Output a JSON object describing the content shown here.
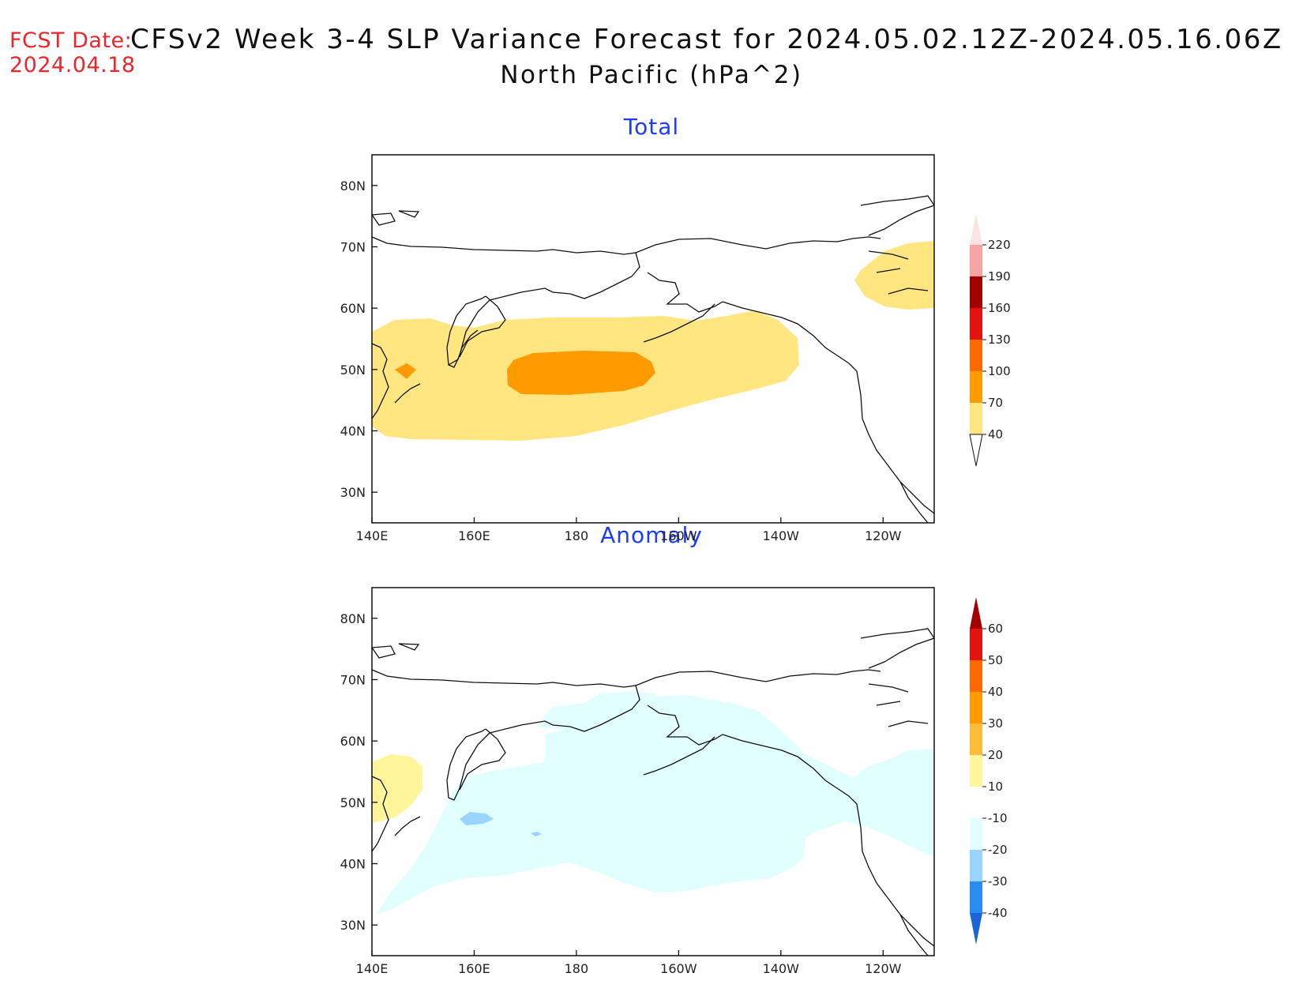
{
  "header": {
    "fcst_label": "FCST Date:",
    "fcst_date": "2024.04.18",
    "title": "CFSv2 Week 3-4 SLP Variance Forecast for 2024.05.02.12Z-2024.05.16.06Z",
    "subtitle": "North Pacific (hPa^2)"
  },
  "axes": {
    "lat_labels": [
      "80N",
      "70N",
      "60N",
      "50N",
      "40N",
      "30N"
    ],
    "lat_values": [
      80,
      70,
      60,
      50,
      40,
      30
    ],
    "lon_labels": [
      "140E",
      "160E",
      "180",
      "160W",
      "140W",
      "120W"
    ],
    "lon_values": [
      140,
      160,
      180,
      200,
      220,
      240
    ],
    "lon_range": [
      140,
      250
    ],
    "lat_range": [
      25,
      85
    ]
  },
  "panels": [
    {
      "title": "Total",
      "colorbar": {
        "labels": [
          "220",
          "190",
          "160",
          "130",
          "100",
          "70",
          "40"
        ],
        "colors": [
          "#f5a3a3",
          "#a30000",
          "#e3140f",
          "#ff6a00",
          "#ff9a00",
          "#ffe680"
        ],
        "top_arrow": "#fde4e4",
        "bottom_arrow": "#ffffff"
      }
    },
    {
      "title": "Anomaly",
      "colorbar": {
        "labels": [
          "60",
          "50",
          "40",
          "30",
          "20",
          "10",
          "-10",
          "-20",
          "-30",
          "-40"
        ],
        "colors": [
          "#e3140f",
          "#ff6a00",
          "#ff9a00",
          "#ffbb3a",
          "#fff59b",
          "#ffffff",
          "#e1ffff",
          "#99d3ff",
          "#2a8cf0"
        ],
        "top_arrow": "#a30000",
        "bottom_arrow": "#1a65d6"
      }
    }
  ],
  "colors": {
    "fcst": "#e8262b",
    "panel_title": "#1a3cff",
    "total_40_70": "#ffe680",
    "total_70_100": "#ff9a00",
    "anom_10_20": "#fff59b",
    "anom_m10_m20": "#e1ffff",
    "anom_m20_m30": "#99d3ff"
  }
}
